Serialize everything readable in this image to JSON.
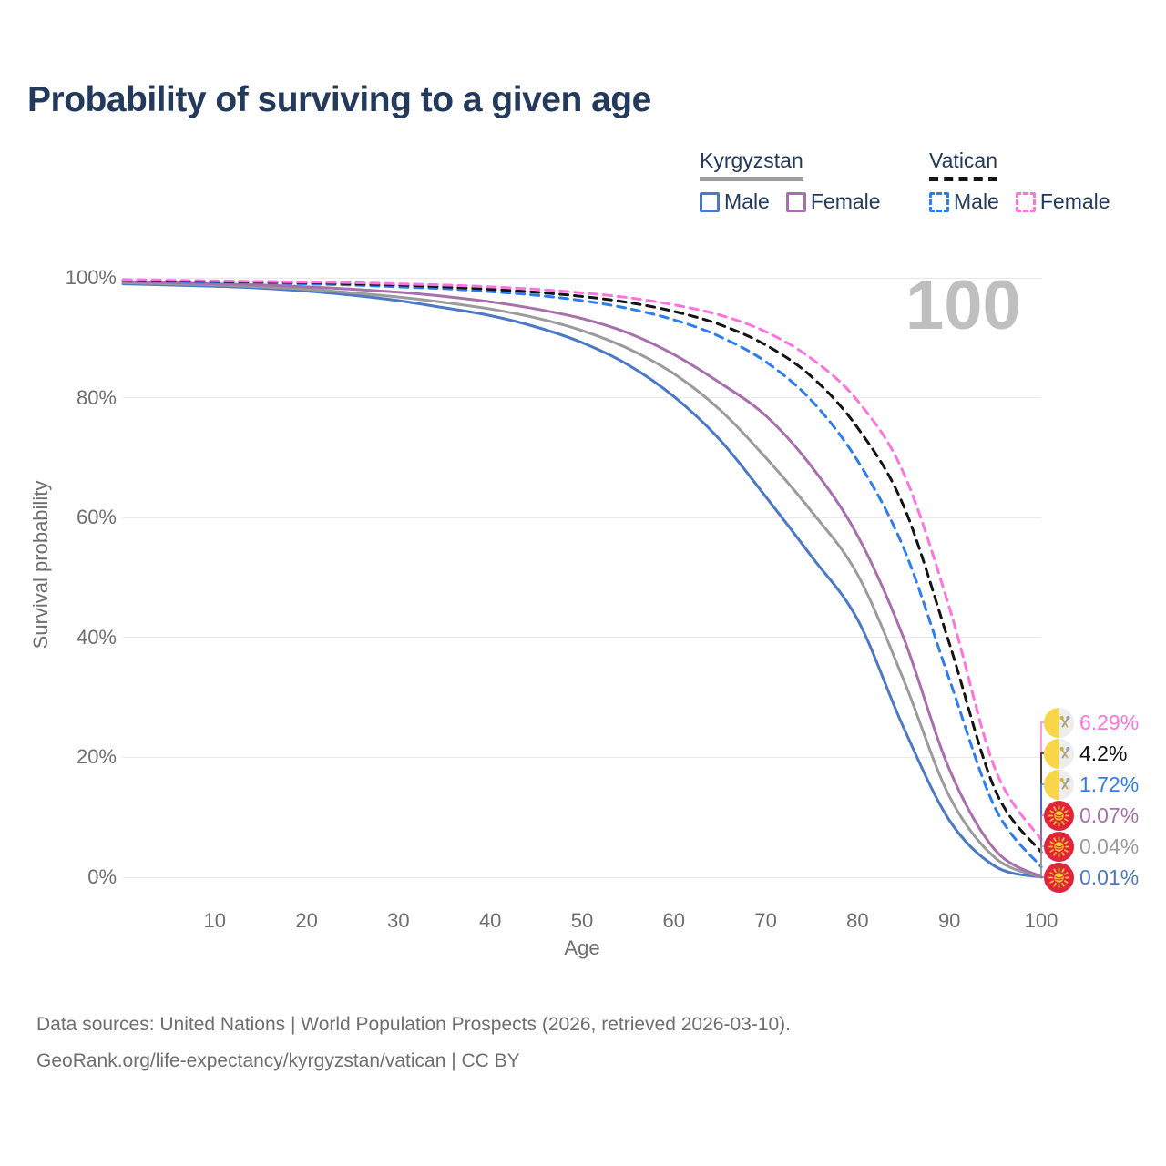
{
  "title": "Probability of surviving to a given age",
  "watermark": "100",
  "legend": {
    "groups": [
      {
        "name": "Kyrgyzstan",
        "line_style": "solid",
        "line_color": "#9B9B9B",
        "items": [
          {
            "label": "Male",
            "color": "#4C79C5",
            "style": "solid"
          },
          {
            "label": "Female",
            "color": "#A86FAD",
            "style": "solid"
          }
        ]
      },
      {
        "name": "Vatican",
        "line_style": "dashed",
        "line_color": "#141414",
        "items": [
          {
            "label": "Male",
            "color": "#2D7DF0",
            "style": "dashed"
          },
          {
            "label": "Female",
            "color": "#FF73DE",
            "style": "dashed"
          }
        ]
      }
    ]
  },
  "chart_data": {
    "type": "line",
    "title": "Probability of surviving to a given age",
    "xlabel": "Age",
    "ylabel": "Survival probability",
    "xlim": [
      0,
      100
    ],
    "ylim": [
      0,
      100
    ],
    "xticks": [
      10,
      20,
      30,
      40,
      50,
      60,
      70,
      80,
      90,
      100
    ],
    "yticks": [
      0,
      20,
      40,
      60,
      80,
      100
    ],
    "ytick_suffix": "%",
    "grid": "horizontal",
    "legend_position": "top-right",
    "x": [
      0,
      5,
      10,
      15,
      20,
      25,
      30,
      35,
      40,
      45,
      50,
      55,
      60,
      65,
      70,
      75,
      80,
      85,
      90,
      95,
      100
    ],
    "series": [
      {
        "name": "Kyrgyzstan Male",
        "country": "Kyrgyzstan",
        "sex": "Male",
        "color": "#4C79C5",
        "dash": false,
        "end_label": "0.01%",
        "values": [
          99.0,
          98.8,
          98.6,
          98.3,
          97.8,
          97.1,
          96.2,
          95.0,
          93.7,
          91.8,
          89.2,
          85.5,
          80.2,
          73.0,
          63.5,
          53.5,
          43.0,
          25.0,
          9.5,
          1.8,
          0.01
        ]
      },
      {
        "name": "Kyrgyzstan Both sexes",
        "country": "Kyrgyzstan",
        "sex": "Both sexes",
        "color": "#9B9B9B",
        "dash": false,
        "end_label": "0.04%",
        "values": [
          99.2,
          99.0,
          98.8,
          98.5,
          98.1,
          97.5,
          96.8,
          95.9,
          94.8,
          93.3,
          91.2,
          88.2,
          84.0,
          78.0,
          70.0,
          61.0,
          50.5,
          33.0,
          13.5,
          3.2,
          0.04
        ]
      },
      {
        "name": "Kyrgyzstan Female",
        "country": "Kyrgyzstan",
        "sex": "Female",
        "color": "#A86FAD",
        "dash": false,
        "end_label": "0.07%",
        "values": [
          99.4,
          99.2,
          99.0,
          98.8,
          98.5,
          98.1,
          97.6,
          96.9,
          96.0,
          94.8,
          93.2,
          90.8,
          87.2,
          82.5,
          77.0,
          68.5,
          57.0,
          40.0,
          18.0,
          4.5,
          0.07
        ]
      },
      {
        "name": "Vatican Male",
        "country": "Vatican",
        "sex": "Male",
        "color": "#2D7DF0",
        "dash": true,
        "end_label": "1.72%",
        "values": [
          99.5,
          99.4,
          99.3,
          99.2,
          99.0,
          98.8,
          98.5,
          98.2,
          97.7,
          97.1,
          96.2,
          94.9,
          93.0,
          90.2,
          86.0,
          79.5,
          69.5,
          55.0,
          33.0,
          11.5,
          1.72
        ]
      },
      {
        "name": "Vatican Both sexes",
        "country": "Vatican",
        "sex": "Both sexes",
        "color": "#141414",
        "dash": true,
        "end_label": "4.2%",
        "values": [
          99.6,
          99.5,
          99.4,
          99.3,
          99.2,
          99.0,
          98.8,
          98.5,
          98.1,
          97.6,
          96.9,
          95.9,
          94.4,
          92.2,
          88.8,
          83.5,
          75.0,
          62.0,
          39.0,
          14.5,
          4.2
        ]
      },
      {
        "name": "Vatican Female",
        "country": "Vatican",
        "sex": "Female",
        "color": "#FF73DE",
        "dash": true,
        "end_label": "6.29%",
        "values": [
          99.7,
          99.6,
          99.5,
          99.4,
          99.3,
          99.2,
          99.0,
          98.8,
          98.5,
          98.1,
          97.5,
          96.7,
          95.5,
          93.8,
          91.0,
          86.5,
          79.5,
          67.5,
          45.0,
          18.0,
          6.29
        ]
      }
    ]
  },
  "end_labels": [
    {
      "flag": "vatican",
      "text": "6.29%",
      "value": 6.29,
      "color": "#FF73DE"
    },
    {
      "flag": "vatican",
      "text": "4.2%",
      "value": 4.2,
      "color": "#141414"
    },
    {
      "flag": "vatican",
      "text": "1.72%",
      "value": 1.72,
      "color": "#2D7DF0"
    },
    {
      "flag": "kyrgyzstan",
      "text": "0.07%",
      "value": 0.07,
      "color": "#A86FAD"
    },
    {
      "flag": "kyrgyzstan",
      "text": "0.04%",
      "value": 0.04,
      "color": "#9B9B9B"
    },
    {
      "flag": "kyrgyzstan",
      "text": "0.01%",
      "value": 0.01,
      "color": "#4C79C5"
    }
  ],
  "footer": {
    "line1": "Data sources: United Nations | World Population Prospects (2026, retrieved 2026-03-10).",
    "line2": "GeoRank.org/life-expectancy/kyrgyzstan/vatican | CC BY"
  }
}
